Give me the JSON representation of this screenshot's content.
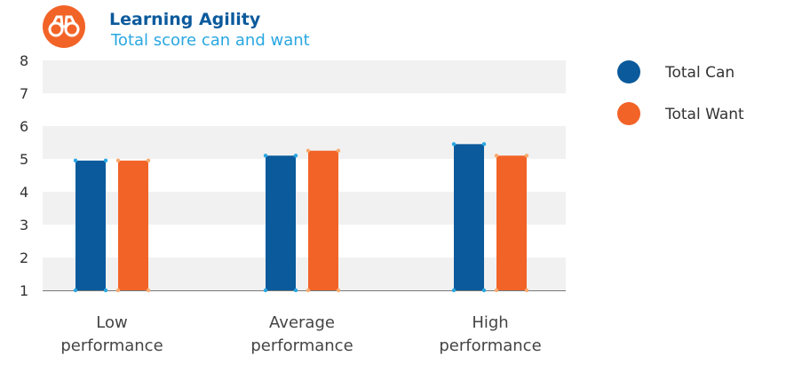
{
  "header": {
    "icon": "binoculars-icon",
    "title": "Learning Agility",
    "subtitle": "Total score can and want"
  },
  "colors": {
    "can": "#0a5a9c",
    "want": "#f26327",
    "title": "#0a5a9c",
    "subtitle": "#29a7e1",
    "band": "#f1f1f1",
    "icon_bg": "#f26327"
  },
  "chart_data": {
    "type": "bar",
    "title": "Learning Agility",
    "subtitle": "Total score can and want",
    "categories": [
      [
        "Low",
        "performance"
      ],
      [
        "Average",
        "performance"
      ],
      [
        "High",
        "performance"
      ]
    ],
    "series": [
      {
        "name": "Total Can",
        "values": [
          4.95,
          5.1,
          5.45
        ]
      },
      {
        "name": "Total Want",
        "values": [
          4.95,
          5.25,
          5.1
        ]
      }
    ],
    "ylim": [
      1,
      8
    ],
    "yticks": [
      1,
      2,
      3,
      4,
      5,
      6,
      7,
      8
    ],
    "legend": "top-right",
    "grid": "alternating horizontal bands"
  }
}
